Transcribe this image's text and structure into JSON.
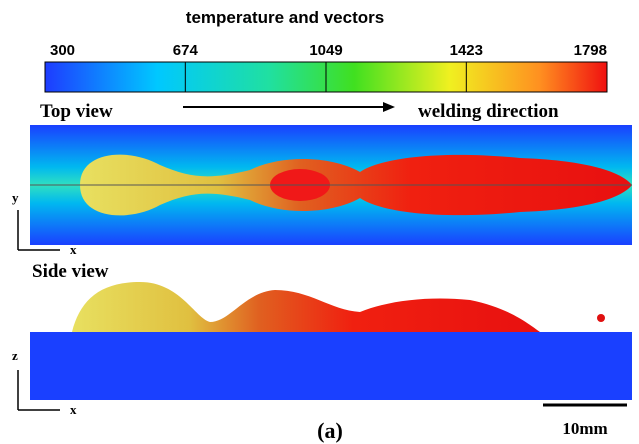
{
  "colorbar": {
    "title": "temperature and vectors",
    "ticks": [
      300,
      674,
      1049,
      1423,
      1798
    ]
  },
  "top_view": {
    "label": "Top view",
    "direction": "welding direction",
    "axis_vertical": "y",
    "axis_horizontal": "x"
  },
  "side_view": {
    "label": "Side view",
    "axis_vertical": "z",
    "axis_horizontal": "x"
  },
  "scale_bar": "10mm",
  "caption": "(a)"
}
